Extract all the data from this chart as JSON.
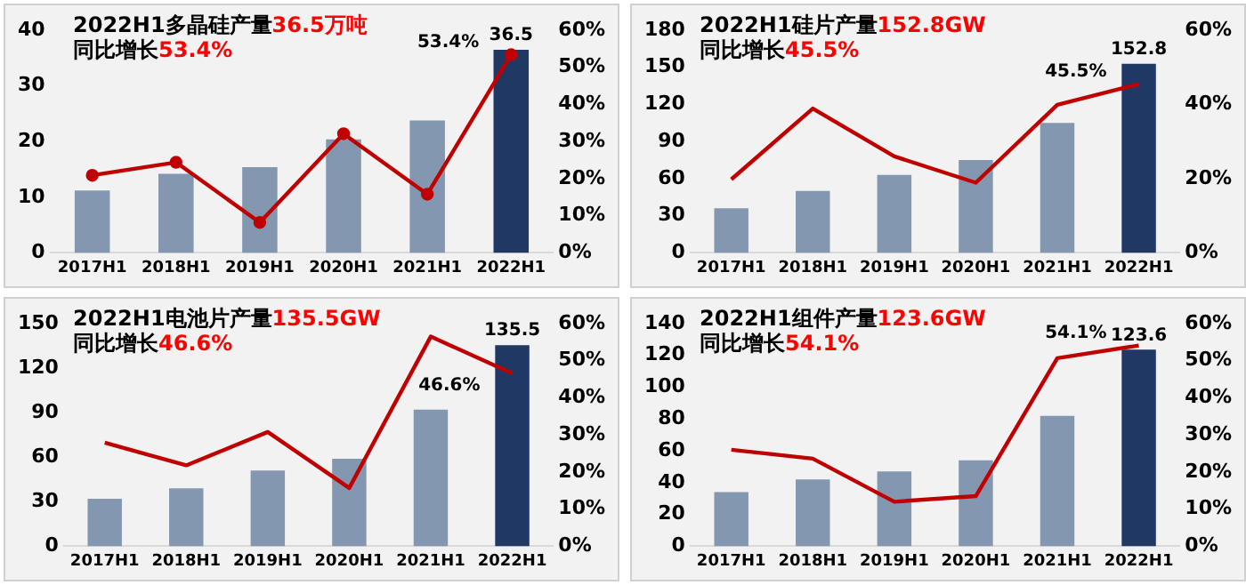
{
  "chart_data": [
    {
      "type": "bar",
      "title": "2022H1多晶硅产量36.5万吨",
      "subtitle": "同比增长53.4%",
      "categories": [
        "2017H1",
        "2018H1",
        "2019H1",
        "2020H1",
        "2021H1",
        "2022H1"
      ],
      "series": [
        {
          "colors": [
            "#8497b0",
            "#8497b0",
            "#8497b0",
            "#8497b0",
            "#8497b0",
            "#203864"
          ],
          "values": [
            11.2,
            14.2,
            15.4,
            20.4,
            23.8,
            36.5
          ],
          "value_labels": [
            null,
            null,
            null,
            null,
            null,
            "36.5"
          ]
        },
        {
          "type": "line",
          "axis": "y2",
          "color": "#c00000",
          "marker": "circle",
          "values": [
            20.9,
            24.4,
            8.2,
            32.1,
            15.8,
            53.4
          ],
          "value_labels": [
            null,
            null,
            null,
            null,
            null,
            "53.4%"
          ]
        }
      ],
      "ylim": [
        0,
        40
      ],
      "yticks": [
        0,
        10,
        20,
        30,
        40
      ],
      "y2lim": [
        0,
        60
      ],
      "y2ticks": [
        {
          "value": 0,
          "label": "0%"
        },
        {
          "value": 10,
          "label": "10%"
        },
        {
          "value": 20,
          "label": "20%"
        },
        {
          "value": 30,
          "label": "30%"
        },
        {
          "value": 40,
          "label": "40%"
        },
        {
          "value": 50,
          "label": "50%"
        },
        {
          "value": 60,
          "label": "60%"
        }
      ],
      "grid": false,
      "legend": false
    },
    {
      "type": "bar",
      "title": "2022H1硅片产量152.8GW",
      "subtitle": "同比增长45.5%",
      "categories": [
        "2017H1",
        "2018H1",
        "2019H1",
        "2020H1",
        "2021H1",
        "2022H1"
      ],
      "series": [
        {
          "colors": [
            "#8497b0",
            "#8497b0",
            "#8497b0",
            "#8497b0",
            "#8497b0",
            "#203864"
          ],
          "values": [
            36,
            50,
            63,
            75,
            105,
            152.8
          ],
          "value_labels": [
            null,
            null,
            null,
            null,
            null,
            "152.8"
          ]
        },
        {
          "type": "line",
          "axis": "y2",
          "color": "#c00000",
          "values": [
            19.8,
            38.9,
            26.0,
            18.9,
            39.9,
            45.5
          ],
          "value_labels": [
            null,
            null,
            null,
            null,
            null,
            "45.5%"
          ]
        }
      ],
      "ylim": [
        0,
        180
      ],
      "yticks": [
        0,
        30,
        60,
        90,
        120,
        150,
        180
      ],
      "y2lim": [
        0,
        60
      ],
      "y2ticks": [
        {
          "value": 0,
          "label": "0%"
        },
        {
          "value": 20,
          "label": "20%"
        },
        {
          "value": 40,
          "label": "40%"
        },
        {
          "value": 60,
          "label": "60%"
        }
      ],
      "grid": false,
      "legend": false
    },
    {
      "type": "bar",
      "title": "2022H1电池片产量135.5GW",
      "subtitle": "同比增长46.6%",
      "categories": [
        "2017H1",
        "2018H1",
        "2019H1",
        "2020H1",
        "2021H1",
        "2022H1"
      ],
      "series": [
        {
          "colors": [
            "#8497b0",
            "#8497b0",
            "#8497b0",
            "#8497b0",
            "#8497b0",
            "#203864"
          ],
          "values": [
            32,
            39,
            51,
            59,
            92,
            135.5
          ],
          "value_labels": [
            null,
            null,
            null,
            null,
            null,
            "135.5"
          ]
        },
        {
          "type": "line",
          "axis": "y2",
          "color": "#c00000",
          "values": [
            27.9,
            21.8,
            30.8,
            15.7,
            56.5,
            46.6
          ],
          "value_labels": [
            null,
            null,
            null,
            null,
            null,
            "46.6%"
          ]
        }
      ],
      "ylim": [
        0,
        150
      ],
      "yticks": [
        0,
        30,
        60,
        90,
        120,
        150
      ],
      "y2lim": [
        0,
        60
      ],
      "y2ticks": [
        {
          "value": 0,
          "label": "0%"
        },
        {
          "value": 10,
          "label": "10%"
        },
        {
          "value": 20,
          "label": "20%"
        },
        {
          "value": 30,
          "label": "30%"
        },
        {
          "value": 40,
          "label": "40%"
        },
        {
          "value": 50,
          "label": "50%"
        },
        {
          "value": 60,
          "label": "60%"
        }
      ],
      "grid": false,
      "legend": false
    },
    {
      "type": "bar",
      "title": "2022H1组件产量123.6GW",
      "subtitle": "同比增长54.1%",
      "categories": [
        "2017H1",
        "2018H1",
        "2019H1",
        "2020H1",
        "2021H1",
        "2022H1"
      ],
      "series": [
        {
          "colors": [
            "#8497b0",
            "#8497b0",
            "#8497b0",
            "#8497b0",
            "#8497b0",
            "#203864"
          ],
          "values": [
            34,
            42,
            47,
            54,
            82,
            123.6
          ],
          "value_labels": [
            null,
            null,
            null,
            null,
            null,
            "123.6"
          ]
        },
        {
          "type": "line",
          "axis": "y2",
          "color": "#c00000",
          "values": [
            26.0,
            23.6,
            12.0,
            13.5,
            50.7,
            54.1
          ],
          "value_labels": [
            null,
            null,
            null,
            null,
            null,
            "54.1%"
          ]
        }
      ],
      "ylim": [
        0,
        140
      ],
      "yticks": [
        0,
        20,
        40,
        60,
        80,
        100,
        120,
        140
      ],
      "y2lim": [
        0,
        60
      ],
      "y2ticks": [
        {
          "value": 0,
          "label": "0%"
        },
        {
          "value": 10,
          "label": "10%"
        },
        {
          "value": 20,
          "label": "20%"
        },
        {
          "value": 30,
          "label": "30%"
        },
        {
          "value": 40,
          "label": "40%"
        },
        {
          "value": 50,
          "label": "50%"
        },
        {
          "value": 60,
          "label": "60%"
        }
      ],
      "grid": false,
      "legend": false
    }
  ]
}
